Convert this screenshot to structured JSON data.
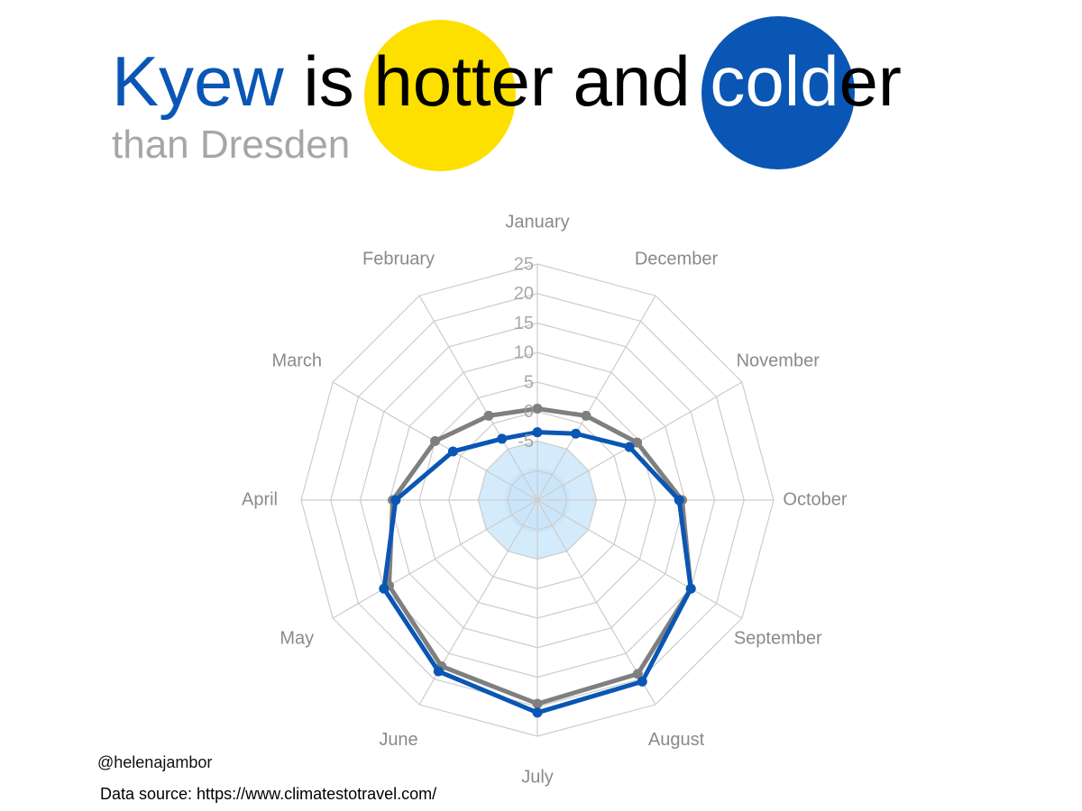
{
  "title": {
    "parts": [
      {
        "text": "Kyew",
        "role": "city"
      },
      {
        "text": " is ",
        "role": "plain"
      },
      {
        "text": "hott",
        "role": "plain"
      },
      {
        "text": "er and ",
        "role": "plain"
      },
      {
        "text": "cold",
        "role": "cold"
      },
      {
        "text": "er",
        "role": "plain"
      }
    ],
    "subtitle": "than Dresden"
  },
  "colors": {
    "kyiv_blue": "#0a56b4",
    "dresden_gray": "#7f7f7f",
    "hot_yellow": "#fde000",
    "cold_blue": "#0a56b4",
    "grid": "#cccccc",
    "label_gray": "#8a8a8a",
    "subtitle_gray": "#a6a6a6",
    "center_fill": "#d4ebfb"
  },
  "chart_data": {
    "type": "radar",
    "title": "Kyew is hotter and colder than Dresden",
    "categories": [
      "January",
      "February",
      "March",
      "April",
      "May",
      "June",
      "July",
      "August",
      "September",
      "October",
      "November",
      "December"
    ],
    "radial_ticks": [
      25,
      20,
      15,
      10,
      5,
      0,
      -5
    ],
    "rmin": -15,
    "rmax": 25,
    "grid": true,
    "series": [
      {
        "values": [
          0.5,
          1.5,
          5.0,
          9.5,
          14.0,
          17.5,
          19.5,
          19.0,
          15.0,
          9.5,
          4.5,
          1.5
        ],
        "color": "#7f7f7f"
      },
      {
        "values": [
          -3.5,
          -3.0,
          1.5,
          9.0,
          15.0,
          18.5,
          21.0,
          20.5,
          15.0,
          9.0,
          3.0,
          -2.0
        ],
        "color": "#0a56b4"
      }
    ]
  },
  "footer": {
    "handle": "@helenajambor",
    "source": "Data source: https://www.climatestotravel.com/"
  }
}
